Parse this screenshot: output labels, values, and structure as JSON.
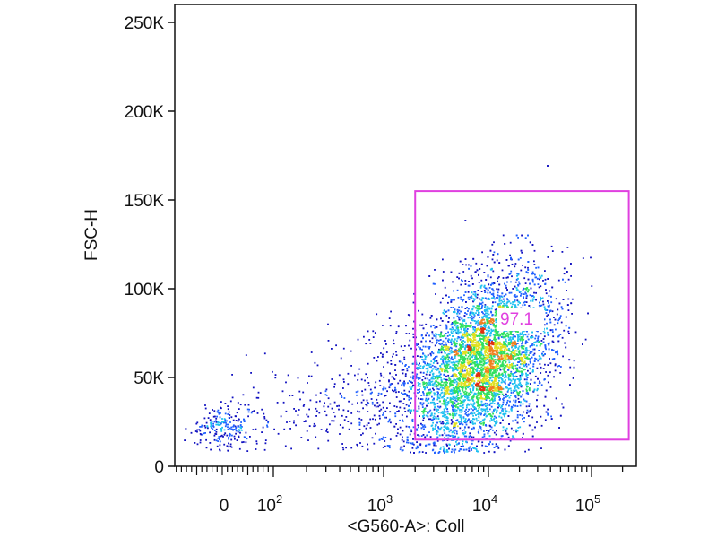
{
  "chart_data": {
    "type": "scatter",
    "subtype": "flow-cytometry-density-dot-plot",
    "xlabel": "<G560-A>: Coll",
    "ylabel": "FSC-H",
    "x_scale": "biexponential",
    "y_scale": "linear",
    "xlim": [
      -100,
      262144
    ],
    "ylim": [
      0,
      262144
    ],
    "x_ticks": [
      {
        "value": 0,
        "label": "0",
        "sup": ""
      },
      {
        "value": 100,
        "label": "10",
        "sup": "2"
      },
      {
        "value": 1000,
        "label": "10",
        "sup": "3"
      },
      {
        "value": 10000,
        "label": "10",
        "sup": "4"
      },
      {
        "value": 100000,
        "label": "10",
        "sup": "5"
      }
    ],
    "y_ticks": [
      {
        "value": 0,
        "label": "0"
      },
      {
        "value": 50000,
        "label": "50K"
      },
      {
        "value": 100000,
        "label": "100K"
      },
      {
        "value": 150000,
        "label": "150K"
      },
      {
        "value": 200000,
        "label": "200K"
      },
      {
        "value": 250000,
        "label": "250K"
      }
    ],
    "populations": [
      {
        "center_x": 9000,
        "center_y": 60000,
        "spread_log_x": 0.32,
        "spread_y": 22000,
        "weight": 0.86
      },
      {
        "center_x": 2500,
        "center_y": 45000,
        "spread_log_x": 0.4,
        "spread_y": 18000,
        "weight": 0.08
      },
      {
        "center_x": 0,
        "center_y": 22000,
        "spread_x": 25,
        "spread_y": 6000,
        "weight": 0.03
      },
      {
        "center_x": 300,
        "center_y": 30000,
        "spread_log_x": 0.5,
        "spread_y": 12000,
        "weight": 0.03
      }
    ],
    "gate": {
      "shape": "rectangle",
      "x_range": [
        2000,
        230000
      ],
      "y_range": [
        15000,
        155000
      ],
      "percent_label": "97.1",
      "color": "#e040e0"
    },
    "density_colors": [
      "#1010c0",
      "#2060ff",
      "#20c0f0",
      "#30e060",
      "#e0e020",
      "#f08020",
      "#e03010"
    ],
    "grid": false,
    "legend": "none"
  }
}
